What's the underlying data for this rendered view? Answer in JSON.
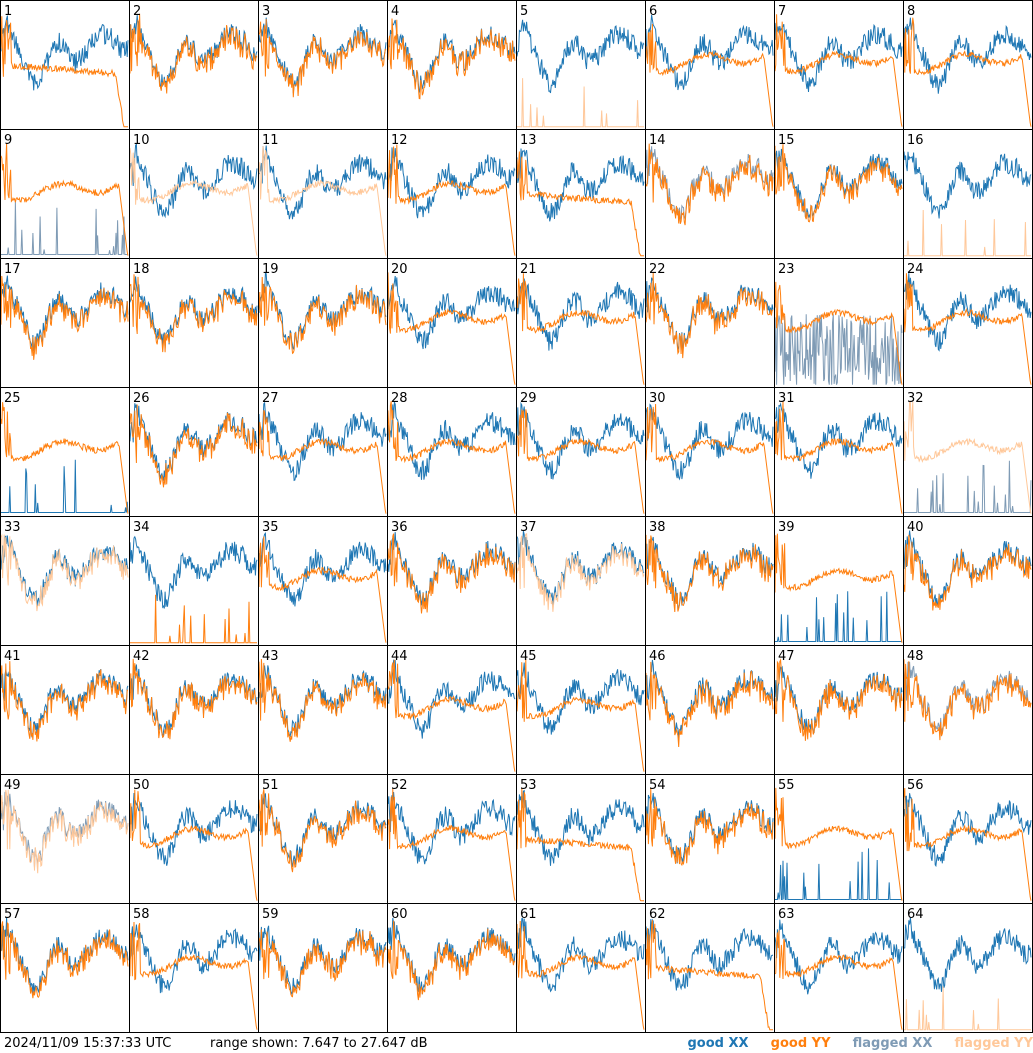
{
  "footer": {
    "timestamp": "2024/11/09 15:37:33 UTC",
    "range_text": "range shown: 7.647 to 27.647 dB"
  },
  "legend": [
    {
      "label": "good XX",
      "color": "#1f77b4"
    },
    {
      "label": "good YY",
      "color": "#ff7f0e"
    },
    {
      "label": "flagged XX",
      "color": "#7f9bb5"
    },
    {
      "label": "flagged YY",
      "color": "#ffc89a"
    }
  ],
  "chart_data": {
    "type": "line",
    "layout": "8x8 small multiples",
    "ylim": [
      7.647,
      27.647
    ],
    "panels": [
      {
        "label": "1",
        "xx": "good",
        "yy": "good",
        "yy_shape": "droop"
      },
      {
        "label": "2",
        "xx": "good",
        "yy": "good",
        "yy_shape": "follow"
      },
      {
        "label": "3",
        "xx": "good",
        "yy": "good",
        "yy_shape": "follow"
      },
      {
        "label": "4",
        "xx": "good",
        "yy": "good",
        "yy_shape": "follow"
      },
      {
        "label": "5",
        "xx": "good",
        "yy": "flagged",
        "yy_shape": "spikes"
      },
      {
        "label": "6",
        "xx": "good",
        "yy": "good",
        "yy_shape": "flat"
      },
      {
        "label": "7",
        "xx": "good",
        "yy": "good",
        "yy_shape": "flat"
      },
      {
        "label": "8",
        "xx": "good",
        "yy": "good",
        "yy_shape": "flat"
      },
      {
        "label": "9",
        "xx": "flagged",
        "yy": "good",
        "yy_shape": "flat",
        "xx_shape": "spikes"
      },
      {
        "label": "10",
        "xx": "good",
        "yy": "flagged",
        "yy_shape": "flat"
      },
      {
        "label": "11",
        "xx": "good",
        "yy": "flagged",
        "yy_shape": "flat"
      },
      {
        "label": "12",
        "xx": "good",
        "yy": "good",
        "yy_shape": "flat"
      },
      {
        "label": "13",
        "xx": "good",
        "yy": "good",
        "yy_shape": "droop"
      },
      {
        "label": "14",
        "xx": "flagged",
        "yy": "good",
        "yy_shape": "follow"
      },
      {
        "label": "15",
        "xx": "good",
        "yy": "good",
        "yy_shape": "follow"
      },
      {
        "label": "16",
        "xx": "good",
        "yy": "flagged",
        "yy_shape": "spikes"
      },
      {
        "label": "17",
        "xx": "good",
        "yy": "good",
        "yy_shape": "follow"
      },
      {
        "label": "18",
        "xx": "good",
        "yy": "good",
        "yy_shape": "follow"
      },
      {
        "label": "19",
        "xx": "good",
        "yy": "good",
        "yy_shape": "follow"
      },
      {
        "label": "20",
        "xx": "good",
        "yy": "good",
        "yy_shape": "flat"
      },
      {
        "label": "21",
        "xx": "good",
        "yy": "good",
        "yy_shape": "flat"
      },
      {
        "label": "22",
        "xx": "good",
        "yy": "good",
        "yy_shape": "follow"
      },
      {
        "label": "23",
        "xx": "flagged",
        "yy": "good",
        "yy_shape": "flat",
        "xx_shape": "noise"
      },
      {
        "label": "24",
        "xx": "good",
        "yy": "good",
        "yy_shape": "flat"
      },
      {
        "label": "25",
        "xx": "good",
        "yy": "good",
        "yy_shape": "flat",
        "xx_shape": "spikes"
      },
      {
        "label": "26",
        "xx": "good",
        "yy": "good",
        "yy_shape": "follow"
      },
      {
        "label": "27",
        "xx": "good",
        "yy": "good",
        "yy_shape": "flat"
      },
      {
        "label": "28",
        "xx": "good",
        "yy": "good",
        "yy_shape": "flat"
      },
      {
        "label": "29",
        "xx": "good",
        "yy": "good",
        "yy_shape": "flat"
      },
      {
        "label": "30",
        "xx": "good",
        "yy": "good",
        "yy_shape": "flat"
      },
      {
        "label": "31",
        "xx": "good",
        "yy": "good",
        "yy_shape": "flat"
      },
      {
        "label": "32",
        "xx": "flagged",
        "yy": "flagged",
        "yy_shape": "flat",
        "xx_shape": "spikes"
      },
      {
        "label": "33",
        "xx": "good",
        "yy": "flagged",
        "yy_shape": "follow"
      },
      {
        "label": "34",
        "xx": "good",
        "yy": "good",
        "yy_shape": "spikes"
      },
      {
        "label": "35",
        "xx": "good",
        "yy": "good",
        "yy_shape": "flat"
      },
      {
        "label": "36",
        "xx": "good",
        "yy": "good",
        "yy_shape": "follow"
      },
      {
        "label": "37",
        "xx": "good",
        "yy": "flagged",
        "yy_shape": "follow"
      },
      {
        "label": "38",
        "xx": "good",
        "yy": "good",
        "yy_shape": "follow"
      },
      {
        "label": "39",
        "xx": "good",
        "yy": "good",
        "yy_shape": "flat",
        "xx_shape": "spikes"
      },
      {
        "label": "40",
        "xx": "good",
        "yy": "good",
        "yy_shape": "follow"
      },
      {
        "label": "41",
        "xx": "good",
        "yy": "good",
        "yy_shape": "follow"
      },
      {
        "label": "42",
        "xx": "good",
        "yy": "good",
        "yy_shape": "follow"
      },
      {
        "label": "43",
        "xx": "good",
        "yy": "good",
        "yy_shape": "follow"
      },
      {
        "label": "44",
        "xx": "good",
        "yy": "good",
        "yy_shape": "flat"
      },
      {
        "label": "45",
        "xx": "good",
        "yy": "good",
        "yy_shape": "flat"
      },
      {
        "label": "46",
        "xx": "good",
        "yy": "good",
        "yy_shape": "follow"
      },
      {
        "label": "47",
        "xx": "good",
        "yy": "good",
        "yy_shape": "follow"
      },
      {
        "label": "48",
        "xx": "flagged",
        "yy": "good",
        "yy_shape": "follow"
      },
      {
        "label": "49",
        "xx": "flagged",
        "yy": "flagged",
        "yy_shape": "follow"
      },
      {
        "label": "50",
        "xx": "good",
        "yy": "good",
        "yy_shape": "flat"
      },
      {
        "label": "51",
        "xx": "good",
        "yy": "good",
        "yy_shape": "follow"
      },
      {
        "label": "52",
        "xx": "good",
        "yy": "good",
        "yy_shape": "flat"
      },
      {
        "label": "53",
        "xx": "good",
        "yy": "good",
        "yy_shape": "droop"
      },
      {
        "label": "54",
        "xx": "good",
        "yy": "good",
        "yy_shape": "follow"
      },
      {
        "label": "55",
        "xx": "good",
        "yy": "good",
        "yy_shape": "flat",
        "xx_shape": "spikes"
      },
      {
        "label": "56",
        "xx": "good",
        "yy": "good",
        "yy_shape": "flat"
      },
      {
        "label": "57",
        "xx": "good",
        "yy": "good",
        "yy_shape": "follow"
      },
      {
        "label": "58",
        "xx": "good",
        "yy": "good",
        "yy_shape": "flat"
      },
      {
        "label": "59",
        "xx": "good",
        "yy": "good",
        "yy_shape": "follow"
      },
      {
        "label": "60",
        "xx": "good",
        "yy": "good",
        "yy_shape": "follow"
      },
      {
        "label": "61",
        "xx": "good",
        "yy": "good",
        "yy_shape": "flat"
      },
      {
        "label": "62",
        "xx": "good",
        "yy": "good",
        "yy_shape": "droop"
      },
      {
        "label": "63",
        "xx": "good",
        "yy": "good",
        "yy_shape": "flat"
      },
      {
        "label": "64",
        "xx": "good",
        "yy": "flagged",
        "yy_shape": "spikes"
      }
    ]
  }
}
